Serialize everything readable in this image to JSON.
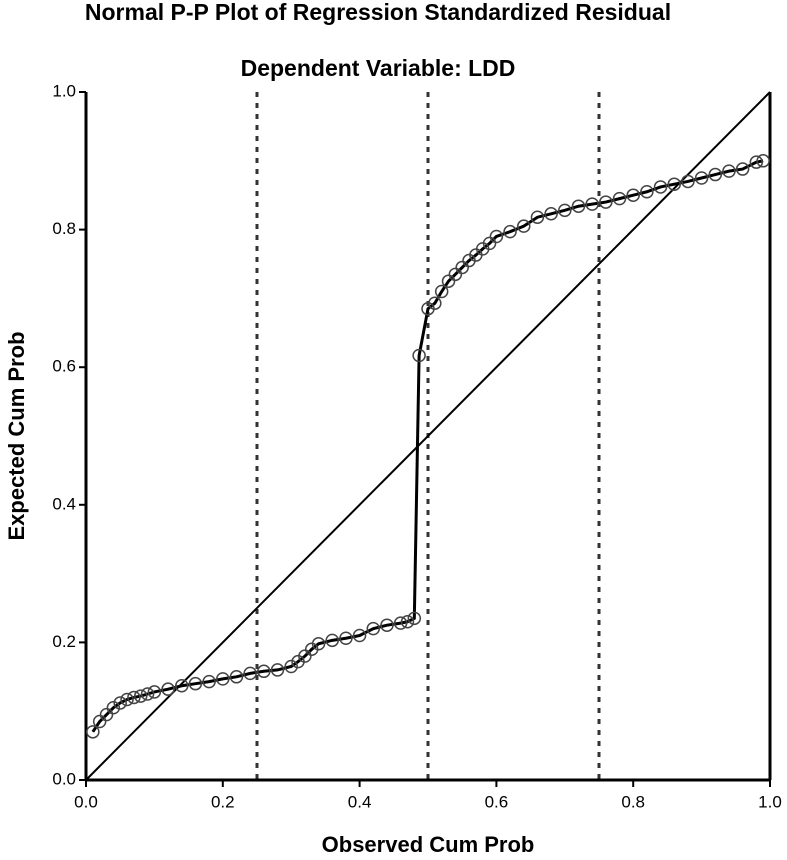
{
  "chart_data": {
    "type": "scatter",
    "title": "Normal P-P Plot of Regression Standardized Residual",
    "subtitle": "Dependent Variable: LDD",
    "x_label": "Observed Cum Prob",
    "y_label": "Expected Cum Prob",
    "xlim": [
      0,
      1
    ],
    "ylim": [
      0,
      1
    ],
    "xticks": [
      {
        "value": 0,
        "label": "0.0"
      },
      0.2,
      0.4,
      0.6,
      0.8,
      {
        "value": 1,
        "label": "1.0"
      }
    ],
    "yticks": [
      {
        "value": 0,
        "label": "0.0"
      },
      0.2,
      0.4,
      0.6,
      0.8,
      {
        "value": 1,
        "label": "1.0"
      }
    ],
    "reference_lines": [
      0.25,
      0.5,
      0.75
    ],
    "diagonal": true,
    "connect": true,
    "color": "#000000",
    "x": [
      0.01,
      0.02,
      0.03,
      0.04,
      0.05,
      0.06,
      0.07,
      0.08,
      0.09,
      0.1,
      0.12,
      0.14,
      0.16,
      0.18,
      0.2,
      0.22,
      0.24,
      0.26,
      0.28,
      0.3,
      0.31,
      0.32,
      0.33,
      0.34,
      0.36,
      0.38,
      0.4,
      0.42,
      0.44,
      0.46,
      0.47,
      0.48,
      0.487,
      0.5,
      0.51,
      0.52,
      0.53,
      0.54,
      0.55,
      0.56,
      0.57,
      0.58,
      0.59,
      0.6,
      0.62,
      0.64,
      0.66,
      0.68,
      0.7,
      0.72,
      0.74,
      0.76,
      0.78,
      0.8,
      0.82,
      0.84,
      0.86,
      0.88,
      0.9,
      0.92,
      0.94,
      0.96,
      0.98,
      0.99
    ],
    "values": [
      0.07,
      0.085,
      0.095,
      0.105,
      0.112,
      0.117,
      0.12,
      0.122,
      0.125,
      0.128,
      0.132,
      0.137,
      0.14,
      0.143,
      0.147,
      0.15,
      0.155,
      0.158,
      0.16,
      0.165,
      0.172,
      0.18,
      0.19,
      0.198,
      0.203,
      0.206,
      0.21,
      0.22,
      0.225,
      0.228,
      0.23,
      0.235,
      0.617,
      0.685,
      0.693,
      0.71,
      0.725,
      0.735,
      0.745,
      0.755,
      0.763,
      0.772,
      0.78,
      0.79,
      0.797,
      0.805,
      0.818,
      0.823,
      0.828,
      0.834,
      0.837,
      0.84,
      0.845,
      0.85,
      0.855,
      0.862,
      0.866,
      0.87,
      0.875,
      0.88,
      0.885,
      0.888,
      0.898,
      0.9
    ]
  }
}
